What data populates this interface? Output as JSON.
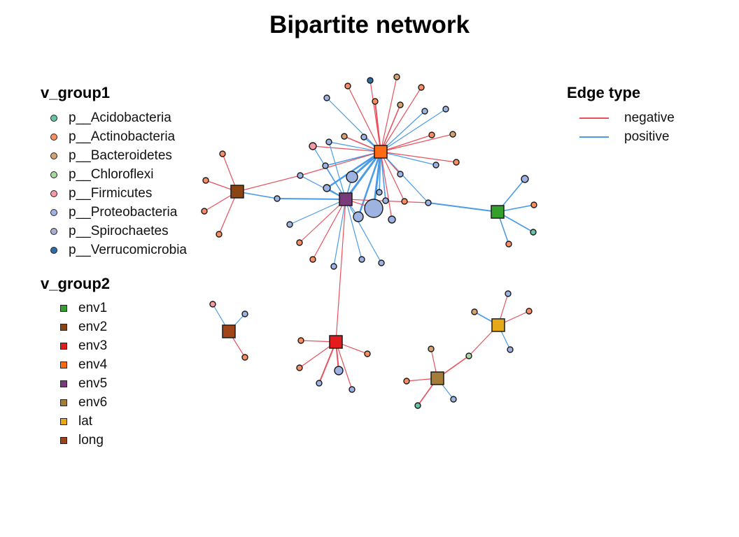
{
  "title": "Bipartite network",
  "legend_group1": {
    "title": "v_group1",
    "items": [
      {
        "label": "p__Acidobacteria",
        "color": "#66c2a5"
      },
      {
        "label": "p__Actinobacteria",
        "color": "#fc8d62"
      },
      {
        "label": "p__Bacteroidetes",
        "color": "#d4a373"
      },
      {
        "label": "p__Chloroflexi",
        "color": "#a6d8a0"
      },
      {
        "label": "p__Firmicutes",
        "color": "#f49aa0"
      },
      {
        "label": "p__Proteobacteria",
        "color": "#9fb3e3"
      },
      {
        "label": "p__Spirochaetes",
        "color": "#a9aed0"
      },
      {
        "label": "p__Verrucomicrobia",
        "color": "#2c6ea8"
      }
    ]
  },
  "legend_group2": {
    "title": "v_group2",
    "items": [
      {
        "label": "env1",
        "color": "#33a02c"
      },
      {
        "label": "env2",
        "color": "#8b4513"
      },
      {
        "label": "env3",
        "color": "#e41a1c"
      },
      {
        "label": "env4",
        "color": "#ff6a13"
      },
      {
        "label": "env5",
        "color": "#7a3b7a"
      },
      {
        "label": "env6",
        "color": "#a67c3b"
      },
      {
        "label": "lat",
        "color": "#e6a817"
      },
      {
        "label": "long",
        "color": "#a0441a"
      }
    ]
  },
  "legend_edges": {
    "title": "Edge type",
    "items": [
      {
        "label": "negative",
        "color": "#e8515d"
      },
      {
        "label": "positive",
        "color": "#4a9be8"
      }
    ]
  },
  "network": {
    "hubs": [
      {
        "id": "env4",
        "color": "#ff6a13"
      },
      {
        "id": "env5",
        "color": "#7a3b7a"
      },
      {
        "id": "env2",
        "color": "#8b4513"
      },
      {
        "id": "env1",
        "color": "#33a02c"
      },
      {
        "id": "long",
        "color": "#a0441a"
      },
      {
        "id": "env3",
        "color": "#e41a1c"
      },
      {
        "id": "lat",
        "color": "#e6a817"
      },
      {
        "id": "env6",
        "color": "#a67c3b"
      }
    ]
  }
}
